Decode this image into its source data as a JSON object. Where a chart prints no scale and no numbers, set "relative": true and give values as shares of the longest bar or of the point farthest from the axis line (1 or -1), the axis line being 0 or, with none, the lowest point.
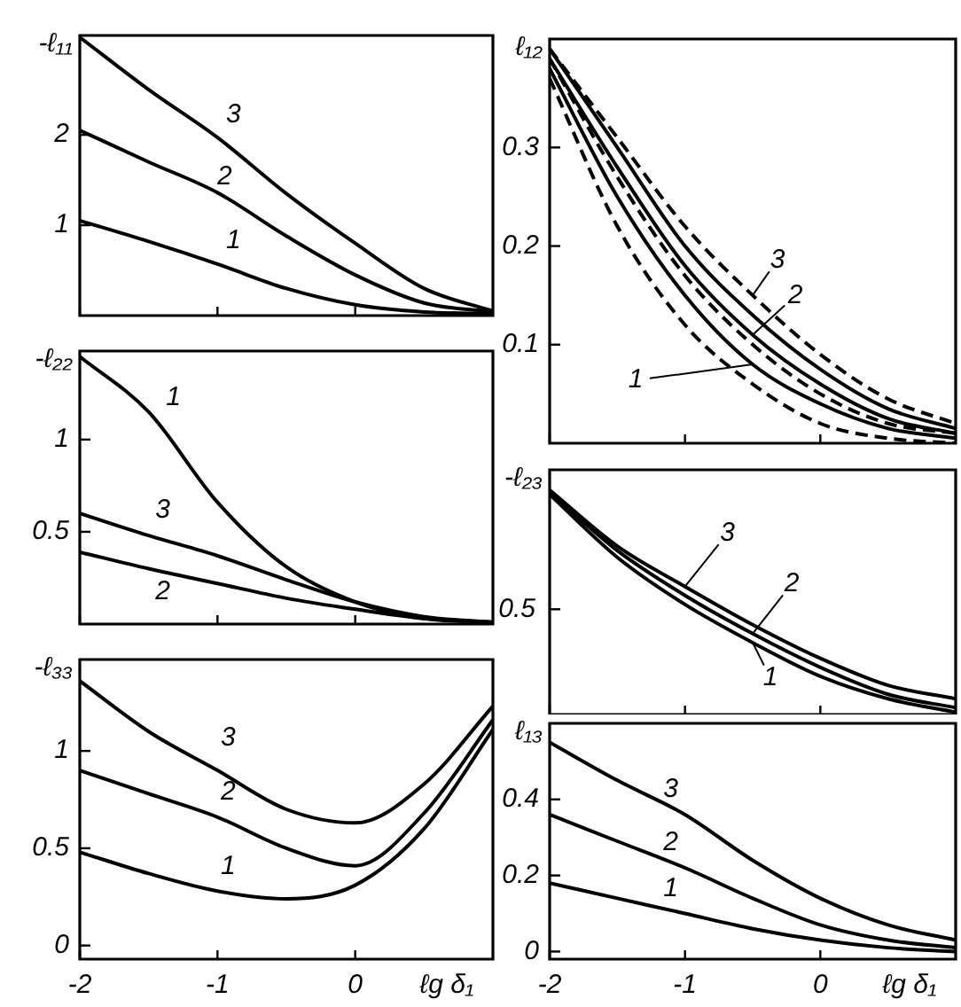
{
  "chart_data": [
    {
      "type": "line",
      "ylabel": "-ℓ₁₁",
      "x": [
        -2,
        -1.5,
        -1,
        -0.5,
        0,
        0.5,
        1
      ],
      "xlim": [
        -2,
        1
      ],
      "xticks": [
        -2,
        -1,
        0
      ],
      "ylim": [
        0,
        3.1
      ],
      "yticks": [
        1,
        2
      ],
      "tick_labels": "y",
      "series": [
        {
          "name": "3",
          "color": "#000000",
          "values": [
            3.08,
            2.5,
            1.97,
            1.35,
            0.8,
            0.3,
            0.05
          ]
        },
        {
          "name": "2",
          "color": "#000000",
          "values": [
            2.05,
            1.7,
            1.36,
            0.88,
            0.45,
            0.14,
            0.04
          ]
        },
        {
          "name": "1",
          "color": "#000000",
          "values": [
            1.05,
            0.82,
            0.57,
            0.3,
            0.12,
            0.04,
            0.02
          ]
        }
      ]
    },
    {
      "type": "line",
      "ylabel": "-ℓ₂₂",
      "x": [
        -2,
        -1.5,
        -1,
        -0.5,
        0,
        0.5,
        1
      ],
      "xlim": [
        -2,
        1
      ],
      "xticks": [
        -2,
        -1,
        0
      ],
      "ylim": [
        0,
        1.48
      ],
      "yticks": [
        0.5,
        1
      ],
      "tick_labels": "y",
      "series": [
        {
          "name": "1",
          "color": "#000000",
          "values": [
            1.45,
            1.15,
            0.66,
            0.31,
            0.12,
            0.03,
            0.01
          ]
        },
        {
          "name": "3",
          "color": "#000000",
          "values": [
            0.6,
            0.48,
            0.37,
            0.24,
            0.12,
            0.04,
            0.01
          ]
        },
        {
          "name": "2",
          "color": "#000000",
          "values": [
            0.39,
            0.3,
            0.22,
            0.14,
            0.08,
            0.03,
            0.01
          ]
        }
      ]
    },
    {
      "type": "line",
      "ylabel": "-ℓ₃₃",
      "xlabel": "ℓg δ₁",
      "x": [
        -2,
        -1.5,
        -1,
        -0.5,
        0,
        0.5,
        1
      ],
      "xlim": [
        -2,
        1
      ],
      "xticks": [
        -2,
        -1,
        0
      ],
      "ylim": [
        -0.07,
        1.47
      ],
      "yticks": [
        0,
        0.5,
        1
      ],
      "series": [
        {
          "name": "3",
          "color": "#000000",
          "values": [
            1.36,
            1.1,
            0.9,
            0.7,
            0.63,
            0.83,
            1.23
          ]
        },
        {
          "name": "2",
          "color": "#000000",
          "values": [
            0.9,
            0.78,
            0.66,
            0.5,
            0.41,
            0.68,
            1.16
          ]
        },
        {
          "name": "1",
          "color": "#000000",
          "values": [
            0.48,
            0.37,
            0.28,
            0.24,
            0.31,
            0.6,
            1.11
          ]
        }
      ]
    },
    {
      "type": "line",
      "ylabel": "ℓ₁₂",
      "x": [
        -2,
        -1.5,
        -1,
        -0.5,
        0,
        0.5,
        1
      ],
      "xlim": [
        -2,
        1
      ],
      "xticks": [
        -2,
        -1,
        0
      ],
      "ylim": [
        0,
        0.41
      ],
      "yticks": [
        0.1,
        0.2,
        0.3
      ],
      "tick_labels": "y",
      "series": [
        {
          "color": "#000000",
          "line_style": "dashed",
          "values": [
            0.37,
            0.22,
            0.12,
            0.06,
            0.02,
            0.005,
            0
          ]
        },
        {
          "name": "1",
          "color": "#000000",
          "line_style": "solid",
          "values": [
            0.38,
            0.25,
            0.15,
            0.08,
            0.04,
            0.015,
            0.005
          ]
        },
        {
          "color": "#000000",
          "line_style": "dashed",
          "values": [
            0.39,
            0.27,
            0.17,
            0.1,
            0.05,
            0.02,
            0.01
          ]
        },
        {
          "name": "2",
          "color": "#000000",
          "line_style": "solid",
          "values": [
            0.39,
            0.28,
            0.18,
            0.11,
            0.06,
            0.025,
            0.01
          ]
        },
        {
          "color": "#000000",
          "line_style": "solid",
          "values": [
            0.4,
            0.3,
            0.2,
            0.13,
            0.075,
            0.035,
            0.015
          ]
        },
        {
          "name": "3",
          "color": "#000000",
          "line_style": "dashed",
          "values": [
            0.4,
            0.31,
            0.22,
            0.15,
            0.09,
            0.045,
            0.02
          ]
        }
      ]
    },
    {
      "type": "line",
      "ylabel": "-ℓ₂₃",
      "relative": true,
      "x": [
        -2,
        -1.5,
        -1,
        -0.5,
        0,
        0.5,
        1
      ],
      "xlim": [
        -2,
        1
      ],
      "xticks": [
        -2,
        -1,
        0
      ],
      "tick_labels": "y",
      "annotations": [
        "0.5"
      ],
      "series": [
        {
          "name": "3",
          "color": "#000000",
          "values": [
            1,
            0.75,
            0.57,
            0.4,
            0.25,
            0.13,
            0.07
          ]
        },
        {
          "name": "2",
          "color": "#000000",
          "values": [
            0.99,
            0.73,
            0.53,
            0.36,
            0.21,
            0.09,
            0.03
          ]
        },
        {
          "name": "1",
          "color": "#000000",
          "values": [
            0.98,
            0.7,
            0.49,
            0.32,
            0.17,
            0.07,
            0.01
          ]
        }
      ]
    },
    {
      "type": "line",
      "ylabel": "ℓ₁₃",
      "xlabel": "ℓg δ₁",
      "x": [
        -2,
        -1.5,
        -1,
        -0.5,
        0,
        0.5,
        1
      ],
      "xlim": [
        -2,
        1
      ],
      "xticks": [
        -2,
        -1,
        0
      ],
      "ylim": [
        -0.02,
        0.6
      ],
      "yticks": [
        0,
        0.2,
        0.4
      ],
      "series": [
        {
          "name": "3",
          "color": "#000000",
          "values": [
            0.55,
            0.45,
            0.36,
            0.24,
            0.14,
            0.07,
            0.03
          ]
        },
        {
          "name": "2",
          "color": "#000000",
          "values": [
            0.36,
            0.29,
            0.22,
            0.14,
            0.07,
            0.03,
            0.01
          ]
        },
        {
          "name": "1",
          "color": "#000000",
          "values": [
            0.18,
            0.14,
            0.1,
            0.06,
            0.03,
            0.01,
            0
          ]
        }
      ]
    }
  ]
}
